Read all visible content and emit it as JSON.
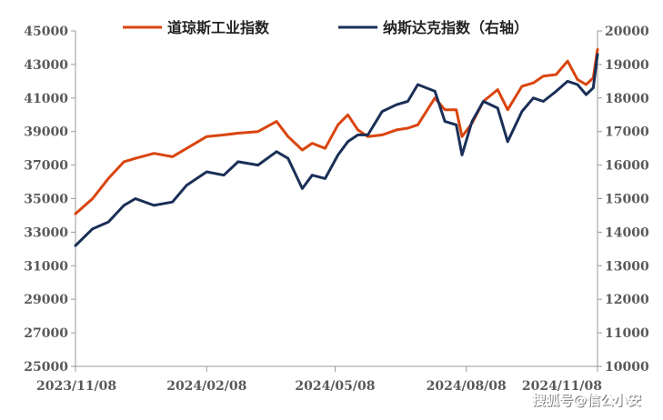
{
  "chart_data": {
    "type": "line",
    "title": "",
    "xlabel": "",
    "ylabel": "",
    "x_ticks": [
      "2023/11/08",
      "2024/02/08",
      "2024/05/08",
      "2024/08/08",
      "2024/11/08"
    ],
    "x_range": [
      "2023-11-08",
      "2024-11-08"
    ],
    "ylim_left": [
      25000,
      45000
    ],
    "yticks_left": [
      25000,
      27000,
      29000,
      31000,
      33000,
      35000,
      37000,
      39000,
      41000,
      43000,
      45000
    ],
    "ylim_right": [
      10000,
      20000
    ],
    "yticks_right": [
      10000,
      11000,
      12000,
      13000,
      14000,
      15000,
      16000,
      17000,
      18000,
      19000,
      20000
    ],
    "grid": false,
    "legend_position": "top",
    "series": [
      {
        "name": "道琼斯工业指数",
        "color": "#d9450f",
        "axis": "left",
        "x": [
          "2023-11-08",
          "2023-11-20",
          "2023-12-01",
          "2023-12-12",
          "2023-12-20",
          "2024-01-02",
          "2024-01-15",
          "2024-01-25",
          "2024-02-08",
          "2024-02-20",
          "2024-03-01",
          "2024-03-15",
          "2024-03-28",
          "2024-04-05",
          "2024-04-15",
          "2024-04-22",
          "2024-05-01",
          "2024-05-10",
          "2024-05-17",
          "2024-05-24",
          "2024-05-31",
          "2024-06-10",
          "2024-06-20",
          "2024-06-28",
          "2024-07-05",
          "2024-07-17",
          "2024-07-24",
          "2024-08-01",
          "2024-08-05",
          "2024-08-12",
          "2024-08-20",
          "2024-08-30",
          "2024-09-06",
          "2024-09-16",
          "2024-09-24",
          "2024-10-01",
          "2024-10-10",
          "2024-10-18",
          "2024-10-25",
          "2024-10-31",
          "2024-11-05",
          "2024-11-08"
        ],
        "values": [
          34100,
          35000,
          36200,
          37200,
          37400,
          37700,
          37500,
          38000,
          38700,
          38800,
          38900,
          39000,
          39600,
          38700,
          37900,
          38300,
          38000,
          39400,
          40000,
          39100,
          38700,
          38800,
          39100,
          39200,
          39400,
          41000,
          40300,
          40300,
          38700,
          39500,
          40800,
          41500,
          40300,
          41700,
          41900,
          42300,
          42400,
          43200,
          42100,
          41800,
          42200,
          43900
        ]
      },
      {
        "name": "纳斯达克指数（右轴）",
        "color": "#1a2f57",
        "axis": "right",
        "x": [
          "2023-11-08",
          "2023-11-20",
          "2023-12-01",
          "2023-12-12",
          "2023-12-20",
          "2024-01-02",
          "2024-01-15",
          "2024-01-25",
          "2024-02-08",
          "2024-02-20",
          "2024-03-01",
          "2024-03-15",
          "2024-03-28",
          "2024-04-05",
          "2024-04-15",
          "2024-04-22",
          "2024-05-01",
          "2024-05-10",
          "2024-05-17",
          "2024-05-24",
          "2024-05-31",
          "2024-06-10",
          "2024-06-20",
          "2024-06-28",
          "2024-07-05",
          "2024-07-17",
          "2024-07-24",
          "2024-08-01",
          "2024-08-05",
          "2024-08-12",
          "2024-08-20",
          "2024-08-30",
          "2024-09-06",
          "2024-09-16",
          "2024-09-24",
          "2024-10-01",
          "2024-10-10",
          "2024-10-18",
          "2024-10-25",
          "2024-10-31",
          "2024-11-05",
          "2024-11-08"
        ],
        "values": [
          13600,
          14100,
          14300,
          14800,
          15000,
          14800,
          14900,
          15400,
          15800,
          15700,
          16100,
          16000,
          16400,
          16200,
          15300,
          15700,
          15600,
          16300,
          16700,
          16900,
          16900,
          17600,
          17800,
          17900,
          18400,
          18200,
          17300,
          17200,
          16300,
          17300,
          17900,
          17700,
          16700,
          17600,
          18000,
          17900,
          18200,
          18500,
          18400,
          18100,
          18300,
          19300
        ]
      }
    ]
  },
  "watermark": "搜狐号@信公小安"
}
